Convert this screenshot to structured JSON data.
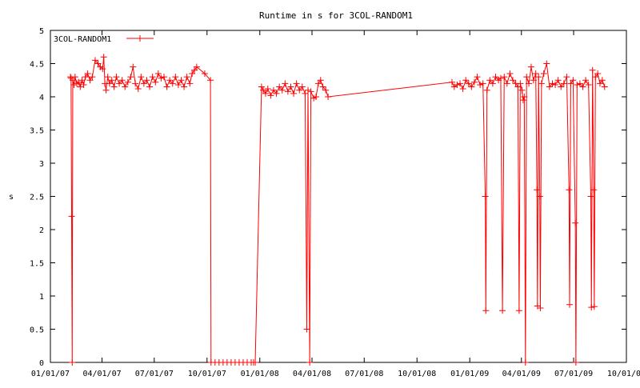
{
  "chart_data": {
    "type": "line",
    "title": "Runtime in s for 3COL-RANDOM1",
    "xlabel": "",
    "ylabel": "s",
    "x_is_date": true,
    "xlim": [
      "2007-01-01",
      "2009-10-01"
    ],
    "ylim": [
      0,
      5
    ],
    "x_ticks": [
      "01/01/07",
      "04/01/07",
      "07/01/07",
      "10/01/07",
      "01/01/08",
      "04/01/08",
      "07/01/08",
      "10/01/08",
      "01/01/09",
      "04/01/09",
      "07/01/09",
      "10/01/09"
    ],
    "y_ticks": [
      "0",
      "0.5",
      "1",
      "1.5",
      "2",
      "2.5",
      "3",
      "3.5",
      "4",
      "4.5",
      "5"
    ],
    "grid": false,
    "legend_position": "top-left",
    "series": [
      {
        "name": "3COL-RANDOM1",
        "color": "#ff0000",
        "marker": "plus",
        "points": [
          [
            "2007-02-05",
            4.3
          ],
          [
            "2007-02-06",
            4.28
          ],
          [
            "2007-02-07",
            2.2
          ],
          [
            "2007-02-08",
            0.0
          ],
          [
            "2007-02-09",
            4.25
          ],
          [
            "2007-02-11",
            4.18
          ],
          [
            "2007-02-13",
            4.3
          ],
          [
            "2007-02-16",
            4.2
          ],
          [
            "2007-02-19",
            4.22
          ],
          [
            "2007-02-22",
            4.15
          ],
          [
            "2007-02-25",
            4.25
          ],
          [
            "2007-02-28",
            4.18
          ],
          [
            "2007-03-03",
            4.3
          ],
          [
            "2007-03-07",
            4.35
          ],
          [
            "2007-03-11",
            4.25
          ],
          [
            "2007-03-15",
            4.3
          ],
          [
            "2007-03-20",
            4.55
          ],
          [
            "2007-03-25",
            4.5
          ],
          [
            "2007-03-29",
            4.45
          ],
          [
            "2007-04-02",
            4.42
          ],
          [
            "2007-04-04",
            4.6
          ],
          [
            "2007-04-06",
            4.2
          ],
          [
            "2007-04-08",
            4.1
          ],
          [
            "2007-04-11",
            4.3
          ],
          [
            "2007-04-14",
            4.2
          ],
          [
            "2007-04-18",
            4.25
          ],
          [
            "2007-04-22",
            4.15
          ],
          [
            "2007-04-26",
            4.3
          ],
          [
            "2007-05-01",
            4.2
          ],
          [
            "2007-05-06",
            4.25
          ],
          [
            "2007-05-11",
            4.15
          ],
          [
            "2007-05-16",
            4.22
          ],
          [
            "2007-05-21",
            4.3
          ],
          [
            "2007-05-25",
            4.45
          ],
          [
            "2007-05-29",
            4.2
          ],
          [
            "2007-06-03",
            4.12
          ],
          [
            "2007-06-08",
            4.3
          ],
          [
            "2007-06-13",
            4.2
          ],
          [
            "2007-06-18",
            4.25
          ],
          [
            "2007-06-23",
            4.15
          ],
          [
            "2007-06-28",
            4.3
          ],
          [
            "2007-07-03",
            4.22
          ],
          [
            "2007-07-08",
            4.35
          ],
          [
            "2007-07-13",
            4.28
          ],
          [
            "2007-07-18",
            4.3
          ],
          [
            "2007-07-23",
            4.15
          ],
          [
            "2007-07-28",
            4.25
          ],
          [
            "2007-08-02",
            4.2
          ],
          [
            "2007-08-07",
            4.3
          ],
          [
            "2007-08-12",
            4.18
          ],
          [
            "2007-08-17",
            4.25
          ],
          [
            "2007-08-22",
            4.15
          ],
          [
            "2007-08-27",
            4.3
          ],
          [
            "2007-09-01",
            4.2
          ],
          [
            "2007-09-05",
            4.35
          ],
          [
            "2007-09-09",
            4.4
          ],
          [
            "2007-09-13",
            4.45
          ],
          [
            "2007-09-27",
            4.35
          ],
          [
            "2007-10-07",
            4.25
          ],
          [
            "2007-10-08",
            0.0
          ],
          [
            "2007-10-15",
            0.0
          ],
          [
            "2007-10-22",
            0.0
          ],
          [
            "2007-10-29",
            0.0
          ],
          [
            "2007-11-05",
            0.0
          ],
          [
            "2007-11-12",
            0.0
          ],
          [
            "2007-11-19",
            0.0
          ],
          [
            "2007-11-26",
            0.0
          ],
          [
            "2007-12-03",
            0.0
          ],
          [
            "2007-12-10",
            0.0
          ],
          [
            "2007-12-17",
            0.0
          ],
          [
            "2007-12-21",
            0.0
          ],
          [
            "2007-12-24",
            0.0
          ],
          [
            "2008-01-04",
            4.15
          ],
          [
            "2008-01-07",
            4.1
          ],
          [
            "2008-01-11",
            4.05
          ],
          [
            "2008-01-15",
            4.12
          ],
          [
            "2008-01-20",
            4.02
          ],
          [
            "2008-01-25",
            4.1
          ],
          [
            "2008-01-30",
            4.05
          ],
          [
            "2008-02-04",
            4.15
          ],
          [
            "2008-02-09",
            4.1
          ],
          [
            "2008-02-14",
            4.2
          ],
          [
            "2008-02-19",
            4.08
          ],
          [
            "2008-02-24",
            4.15
          ],
          [
            "2008-02-29",
            4.05
          ],
          [
            "2008-03-05",
            4.2
          ],
          [
            "2008-03-10",
            4.1
          ],
          [
            "2008-03-15",
            4.15
          ],
          [
            "2008-03-20",
            4.05
          ],
          [
            "2008-03-23",
            0.5
          ],
          [
            "2008-03-25",
            4.1
          ],
          [
            "2008-03-28",
            0.0
          ],
          [
            "2008-03-30",
            4.08
          ],
          [
            "2008-04-04",
            3.98
          ],
          [
            "2008-04-08",
            4.0
          ],
          [
            "2008-04-12",
            4.2
          ],
          [
            "2008-04-16",
            4.25
          ],
          [
            "2008-04-20",
            4.15
          ],
          [
            "2008-04-25",
            4.1
          ],
          [
            "2008-04-29",
            4.0
          ],
          [
            "2008-12-01",
            4.22
          ],
          [
            "2008-12-05",
            4.15
          ],
          [
            "2008-12-10",
            4.18
          ],
          [
            "2008-12-15",
            4.2
          ],
          [
            "2008-12-20",
            4.12
          ],
          [
            "2008-12-25",
            4.25
          ],
          [
            "2008-12-30",
            4.2
          ],
          [
            "2009-01-04",
            4.15
          ],
          [
            "2009-01-09",
            4.22
          ],
          [
            "2009-01-14",
            4.3
          ],
          [
            "2009-01-19",
            4.18
          ],
          [
            "2009-01-24",
            4.2
          ],
          [
            "2009-01-28",
            2.5
          ],
          [
            "2009-01-29",
            0.78
          ],
          [
            "2009-01-31",
            4.1
          ],
          [
            "2009-02-05",
            4.25
          ],
          [
            "2009-02-10",
            4.2
          ],
          [
            "2009-02-15",
            4.3
          ],
          [
            "2009-02-20",
            4.25
          ],
          [
            "2009-02-24",
            4.28
          ],
          [
            "2009-02-27",
            0.78
          ],
          [
            "2009-03-02",
            4.3
          ],
          [
            "2009-03-07",
            4.2
          ],
          [
            "2009-03-12",
            4.35
          ],
          [
            "2009-03-17",
            4.25
          ],
          [
            "2009-03-22",
            4.2
          ],
          [
            "2009-03-26",
            4.15
          ],
          [
            "2009-03-28",
            0.78
          ],
          [
            "2009-03-30",
            4.2
          ],
          [
            "2009-04-02",
            4.1
          ],
          [
            "2009-04-04",
            3.95
          ],
          [
            "2009-04-06",
            4.0
          ],
          [
            "2009-04-08",
            0.0
          ],
          [
            "2009-04-10",
            4.3
          ],
          [
            "2009-04-14",
            4.2
          ],
          [
            "2009-04-18",
            4.45
          ],
          [
            "2009-04-22",
            4.25
          ],
          [
            "2009-04-26",
            4.35
          ],
          [
            "2009-04-28",
            2.6
          ],
          [
            "2009-04-29",
            0.85
          ],
          [
            "2009-05-01",
            4.3
          ],
          [
            "2009-05-03",
            2.5
          ],
          [
            "2009-05-04",
            0.82
          ],
          [
            "2009-05-06",
            4.2
          ],
          [
            "2009-05-10",
            4.35
          ],
          [
            "2009-05-15",
            4.5
          ],
          [
            "2009-05-20",
            4.15
          ],
          [
            "2009-05-25",
            4.2
          ],
          [
            "2009-05-30",
            4.18
          ],
          [
            "2009-06-04",
            4.25
          ],
          [
            "2009-06-09",
            4.15
          ],
          [
            "2009-06-14",
            4.2
          ],
          [
            "2009-06-19",
            4.3
          ],
          [
            "2009-06-23",
            2.6
          ],
          [
            "2009-06-24",
            0.87
          ],
          [
            "2009-06-26",
            4.2
          ],
          [
            "2009-06-30",
            4.25
          ],
          [
            "2009-07-04",
            2.1
          ],
          [
            "2009-07-05",
            0.0
          ],
          [
            "2009-07-07",
            4.18
          ],
          [
            "2009-07-12",
            4.2
          ],
          [
            "2009-07-17",
            4.15
          ],
          [
            "2009-07-22",
            4.25
          ],
          [
            "2009-07-27",
            4.18
          ],
          [
            "2009-07-31",
            2.5
          ],
          [
            "2009-08-01",
            0.83
          ],
          [
            "2009-08-03",
            4.4
          ],
          [
            "2009-08-05",
            2.6
          ],
          [
            "2009-08-06",
            0.84
          ],
          [
            "2009-08-08",
            4.3
          ],
          [
            "2009-08-12",
            4.35
          ],
          [
            "2009-08-16",
            4.2
          ],
          [
            "2009-08-20",
            4.25
          ],
          [
            "2009-08-24",
            4.15
          ]
        ]
      }
    ]
  }
}
